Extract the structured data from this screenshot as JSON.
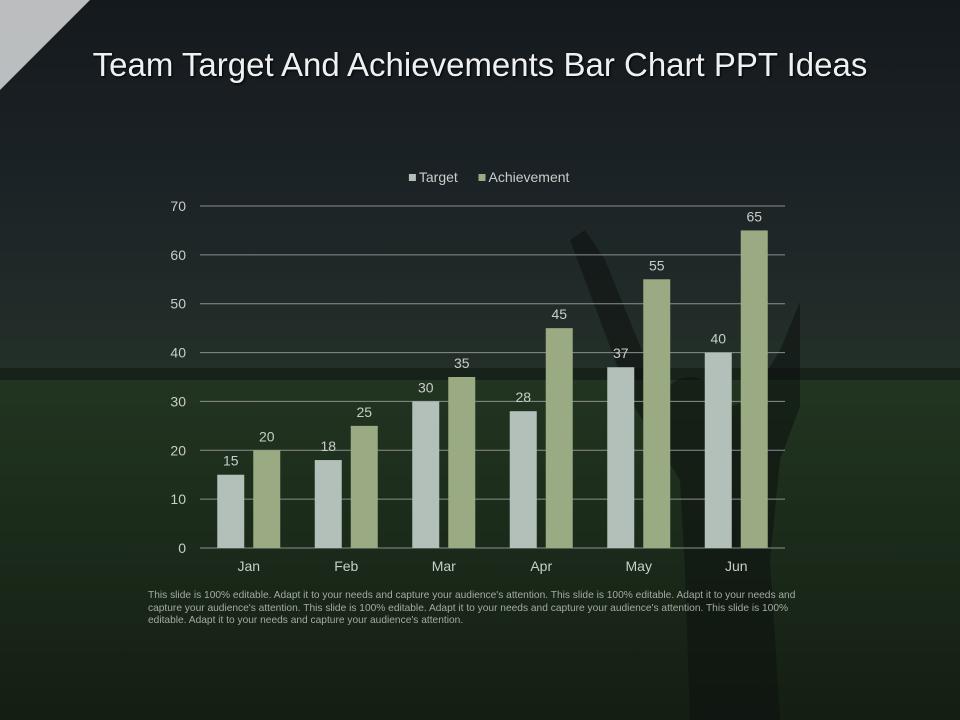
{
  "slide": {
    "title": "Team Target And Achievements Bar Chart PPT Ideas",
    "footnote": "This slide is 100% editable. Adapt it to your needs and capture your audience's attention. This slide is 100% editable. Adapt it to your needs and capture your audience's attention. This slide is 100% editable. Adapt it to your needs and capture your audience's attention. This slide is 100% editable. Adapt it to your needs and capture your audience's attention."
  },
  "colors": {
    "target": "#b3c0ba",
    "achievement": "#9aaa82",
    "axis_text": "#c9cdca",
    "gridline": "#8a8f8c"
  },
  "chart_data": {
    "type": "bar",
    "title": "",
    "xlabel": "",
    "ylabel": "",
    "categories": [
      "Jan",
      "Feb",
      "Mar",
      "Apr",
      "May",
      "Jun"
    ],
    "series": [
      {
        "name": "Target",
        "values": [
          15,
          18,
          30,
          28,
          37,
          40
        ]
      },
      {
        "name": "Achievement",
        "values": [
          20,
          25,
          35,
          45,
          55,
          65
        ]
      }
    ],
    "ylim": [
      0,
      70
    ],
    "yticks": [
      0,
      10,
      20,
      30,
      40,
      50,
      60,
      70
    ],
    "grid": true,
    "legend_position": "top",
    "data_labels": true
  }
}
